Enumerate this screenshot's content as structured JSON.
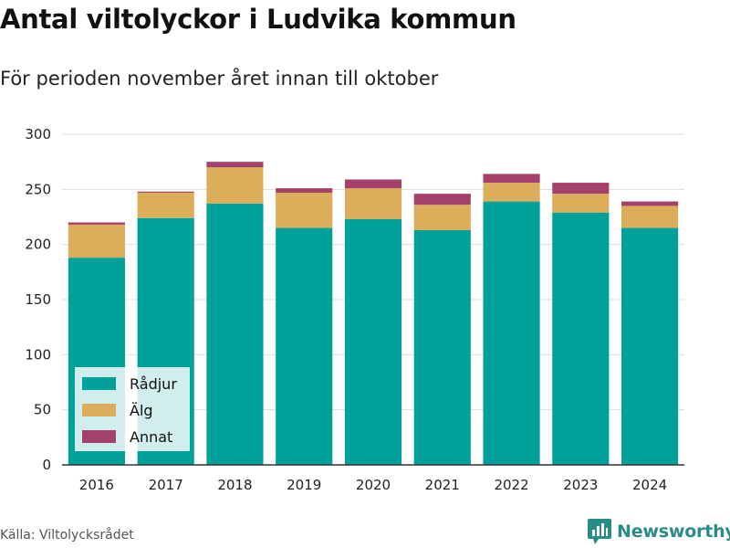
{
  "title": "Antal viltolyckor i Ludvika kommun",
  "subtitle": "För perioden november året innan till oktober",
  "source": "Källa: Viltolycksrådet",
  "brand": "Newsworthy",
  "colors": {
    "radjur": "#00a19a",
    "alg": "#dcae5c",
    "annat": "#a3416b",
    "grid": "#dddddd",
    "brand": "#2a8c86"
  },
  "chart_data": {
    "type": "bar",
    "stacked": true,
    "categories": [
      "2016",
      "2017",
      "2018",
      "2019",
      "2020",
      "2021",
      "2022",
      "2023",
      "2024"
    ],
    "series": [
      {
        "name": "Rådjur",
        "values": [
          188,
          224,
          237,
          215,
          223,
          213,
          239,
          229,
          215
        ]
      },
      {
        "name": "Älg",
        "values": [
          30,
          23,
          33,
          32,
          28,
          23,
          17,
          17,
          20
        ]
      },
      {
        "name": "Annat",
        "values": [
          2,
          1,
          5,
          4,
          8,
          10,
          8,
          10,
          4
        ]
      }
    ],
    "yticks": [
      0,
      50,
      100,
      150,
      200,
      250,
      300
    ],
    "ylim": [
      0,
      300
    ],
    "grid": true,
    "legend": "bottom-left"
  }
}
